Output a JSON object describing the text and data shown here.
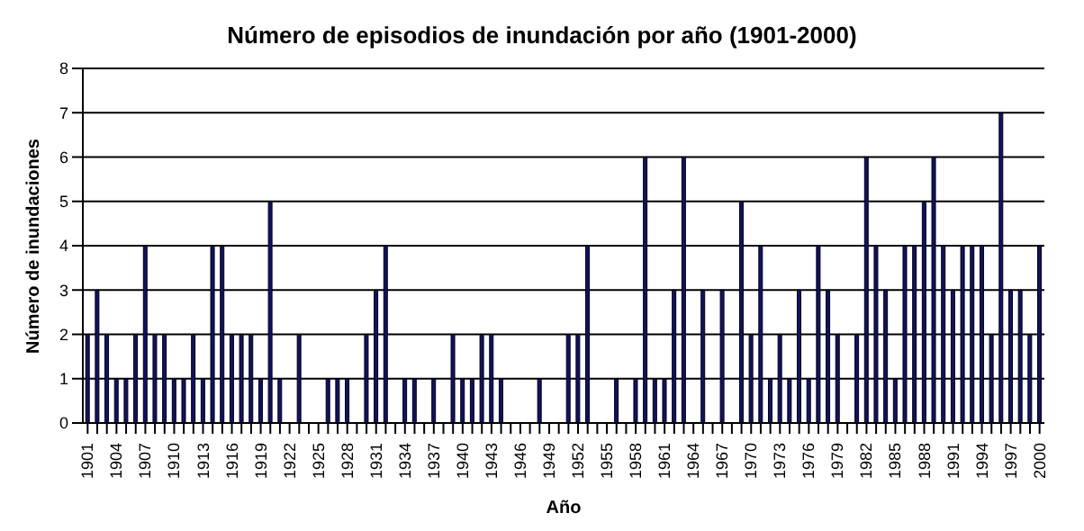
{
  "chart_data": {
    "type": "bar",
    "title": "Número de episodios de inundación por año (1901-2000)",
    "xlabel": "Año",
    "ylabel": "Número de inundaciones",
    "categories": [
      "1901",
      null,
      null,
      "1904",
      null,
      null,
      "1907",
      null,
      null,
      "1910",
      null,
      null,
      "1913",
      null,
      null,
      "1916",
      null,
      null,
      "1919",
      null,
      null,
      "1922",
      null,
      null,
      "1925",
      null,
      null,
      "1928",
      null,
      null,
      "1931",
      null,
      null,
      "1934",
      null,
      null,
      "1937",
      null,
      null,
      "1940",
      null,
      null,
      "1943",
      null,
      null,
      "1946",
      null,
      null,
      "1949",
      null,
      null,
      "1952",
      null,
      null,
      "1955",
      null,
      null,
      "1958",
      null,
      null,
      "1961",
      null,
      null,
      "1964",
      null,
      null,
      "1967",
      null,
      null,
      "1970",
      null,
      null,
      "1973",
      null,
      null,
      "1976",
      null,
      null,
      "1979",
      null,
      null,
      "1982",
      null,
      null,
      "1985",
      null,
      null,
      "1988",
      null,
      null,
      "1991",
      null,
      null,
      "1994",
      null,
      null,
      "1997",
      null,
      null,
      "2000"
    ],
    "values": [
      2,
      3,
      2,
      1,
      1,
      2,
      4,
      2,
      2,
      1,
      1,
      2,
      1,
      4,
      4,
      2,
      2,
      2,
      1,
      5,
      1,
      0,
      2,
      0,
      0,
      1,
      1,
      1,
      0,
      2,
      3,
      4,
      0,
      1,
      1,
      0,
      1,
      0,
      2,
      1,
      1,
      2,
      2,
      1,
      0,
      0,
      0,
      1,
      0,
      0,
      2,
      2,
      4,
      0,
      0,
      1,
      0,
      1,
      6,
      1,
      1,
      3,
      6,
      0,
      3,
      0,
      3,
      0,
      5,
      2,
      4,
      1,
      2,
      1,
      3,
      1,
      4,
      3,
      2,
      0,
      2,
      6,
      4,
      3,
      1,
      4,
      4,
      5,
      6,
      4,
      3,
      4,
      4,
      4,
      2,
      7,
      3,
      3,
      2,
      4
    ],
    "color": "#10106e",
    "ylim": [
      0,
      8
    ],
    "yticks": [
      0,
      1,
      2,
      3,
      4,
      5,
      6,
      7,
      8
    ],
    "grid": "y",
    "legend": false
  }
}
